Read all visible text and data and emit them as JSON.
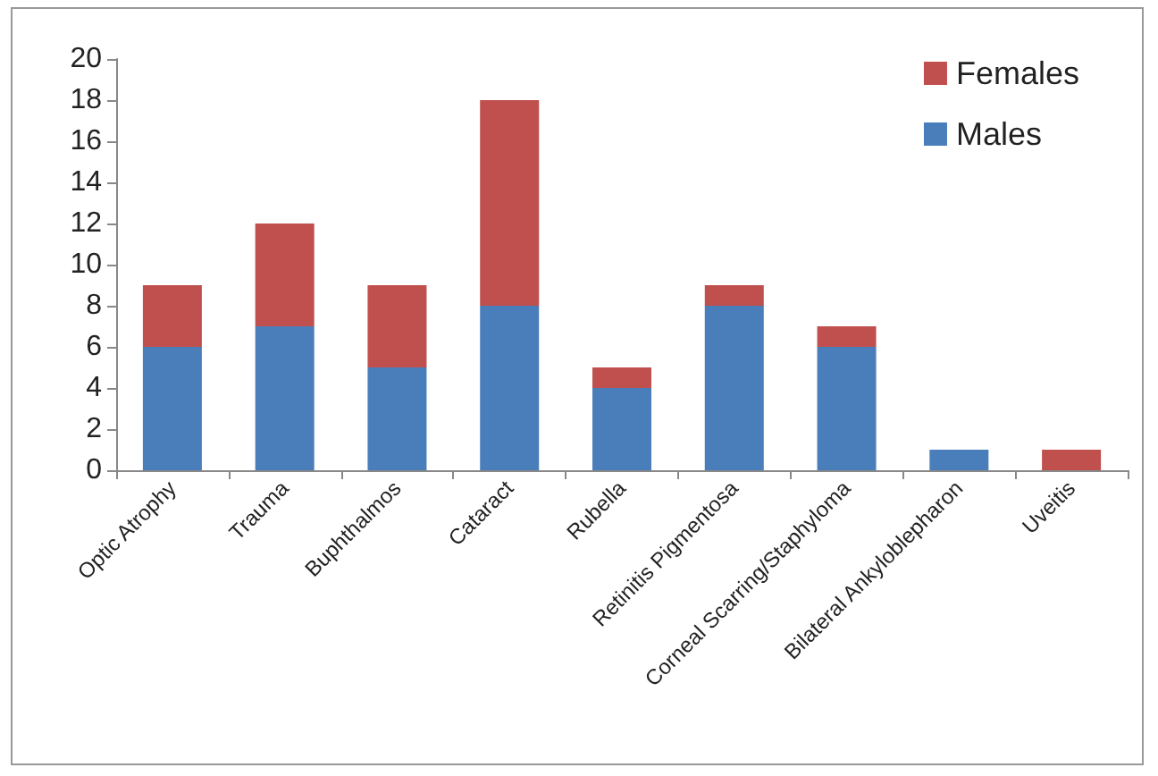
{
  "chart_data": {
    "type": "bar",
    "stacked": true,
    "categories": [
      "Optic Atrophy",
      "Trauma",
      "Buphthalmos",
      "Cataract",
      "Rubella",
      "Retinitis Pigmentosa",
      "Corneal Scarring/Staphyloma",
      "Bilateral Ankyloblepharon",
      "Uveitis"
    ],
    "series": [
      {
        "name": "Males",
        "color": "#4a7ebb",
        "values": [
          6,
          7,
          5,
          8,
          4,
          8,
          6,
          1,
          0
        ]
      },
      {
        "name": "Females",
        "color": "#c0504d",
        "values": [
          3,
          5,
          4,
          10,
          1,
          1,
          1,
          0,
          1
        ]
      }
    ],
    "ylim": [
      0,
      20
    ],
    "yticks": [
      0,
      2,
      4,
      6,
      8,
      10,
      12,
      14,
      16,
      18,
      20
    ],
    "grid": false,
    "legend": "top right"
  }
}
